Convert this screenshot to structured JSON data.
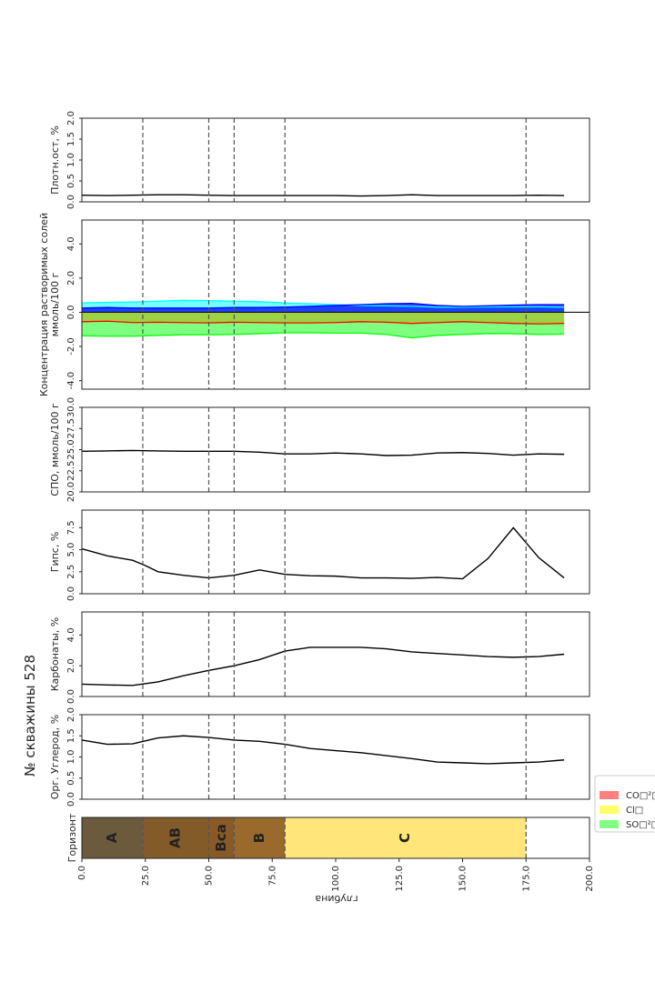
{
  "title": "№ скважины 528",
  "x_axis": {
    "label": "глубина",
    "range": [
      0,
      200
    ],
    "ticks": [
      0,
      25,
      50,
      75,
      100,
      125,
      150,
      175,
      200
    ],
    "tick_labels": [
      "0.0",
      "25.0",
      "50.0",
      "75.0",
      "100.0",
      "125.0",
      "150.0",
      "175.0",
      "200.0"
    ]
  },
  "horizon_boundaries": [
    24,
    50,
    60,
    80,
    175
  ],
  "legend": {
    "items": [
      {
        "label": "CO□²□",
        "color": "#ff8080"
      },
      {
        "label": "Cl□",
        "color": "#ffff66"
      },
      {
        "label": "SO□²□",
        "color": "#80ff80"
      }
    ]
  },
  "chart_data": [
    {
      "id": "dense_residue",
      "type": "line",
      "ylabel": "Плотн.ост, %",
      "ylim": [
        0,
        2
      ],
      "yticks": [
        "0.0",
        "0.5",
        "1.0",
        "1.5",
        "2.0"
      ],
      "ytick_values": [
        0,
        0.5,
        1,
        1.5,
        2
      ],
      "x": [
        0,
        10,
        20,
        30,
        40,
        50,
        60,
        70,
        80,
        90,
        100,
        110,
        120,
        130,
        140,
        150,
        160,
        170,
        180,
        190
      ],
      "values": [
        0.16,
        0.15,
        0.16,
        0.17,
        0.17,
        0.16,
        0.15,
        0.15,
        0.15,
        0.15,
        0.15,
        0.14,
        0.15,
        0.17,
        0.15,
        0.15,
        0.15,
        0.15,
        0.16,
        0.15
      ]
    },
    {
      "id": "salts",
      "type": "area",
      "ylabel_lines": [
        "Концентрация растворимых солей",
        "ммоль/100 г"
      ],
      "ylim": [
        -4.5,
        5.4
      ],
      "yticks": [
        "-4.0",
        "-2.0",
        "0.0",
        "2.0",
        "4.0"
      ],
      "ytick_values": [
        -4,
        -2,
        0,
        2,
        4
      ],
      "x": [
        0,
        10,
        20,
        30,
        40,
        50,
        60,
        70,
        80,
        90,
        100,
        110,
        120,
        130,
        140,
        150,
        160,
        170,
        180,
        190
      ],
      "series": [
        {
          "name": "cyan",
          "color": "#00ffff",
          "values": [
            0.55,
            0.58,
            0.6,
            0.65,
            0.7,
            0.68,
            0.65,
            0.62,
            0.55,
            0.5,
            0.45,
            0.4,
            0.38,
            0.35,
            0.3,
            0.3,
            0.32,
            0.32,
            0.32,
            0.3
          ]
        },
        {
          "name": "blue",
          "color": "#0000ff",
          "values": [
            0.25,
            0.28,
            0.25,
            0.25,
            0.25,
            0.25,
            0.28,
            0.28,
            0.3,
            0.35,
            0.4,
            0.45,
            0.5,
            0.52,
            0.4,
            0.35,
            0.38,
            0.42,
            0.45,
            0.45
          ]
        },
        {
          "name": "red",
          "color": "#ff0000",
          "values": [
            -0.55,
            -0.52,
            -0.6,
            -0.58,
            -0.6,
            -0.62,
            -0.58,
            -0.6,
            -0.62,
            -0.62,
            -0.6,
            -0.55,
            -0.58,
            -0.65,
            -0.6,
            -0.55,
            -0.6,
            -0.65,
            -0.68,
            -0.65
          ]
        },
        {
          "name": "green",
          "color": "#00ff00",
          "values": [
            -1.38,
            -1.4,
            -1.4,
            -1.35,
            -1.32,
            -1.32,
            -1.3,
            -1.25,
            -1.2,
            -1.2,
            -1.22,
            -1.22,
            -1.3,
            -1.5,
            -1.35,
            -1.3,
            -1.25,
            -1.25,
            -1.3,
            -1.28
          ]
        }
      ]
    },
    {
      "id": "spo",
      "type": "line",
      "ylabel": "СПО, ммоль/100 г",
      "ylim": [
        20,
        30
      ],
      "yticks": [
        "20.0",
        "22.5",
        "25.0",
        "27.5",
        "30.0"
      ],
      "ytick_values": [
        20,
        22.5,
        25,
        27.5,
        30
      ],
      "x": [
        0,
        10,
        20,
        30,
        40,
        50,
        60,
        70,
        80,
        90,
        100,
        110,
        120,
        130,
        140,
        150,
        160,
        170,
        180,
        190
      ],
      "values": [
        24.8,
        24.85,
        24.9,
        24.85,
        24.8,
        24.8,
        24.8,
        24.7,
        24.5,
        24.5,
        24.6,
        24.5,
        24.3,
        24.35,
        24.6,
        24.65,
        24.55,
        24.35,
        24.5,
        24.45
      ]
    },
    {
      "id": "gypsum",
      "type": "line",
      "ylabel": "Гипс, %",
      "ylim": [
        0,
        9.5
      ],
      "yticks": [
        "0.0",
        "2.5",
        "5.0",
        "7.5"
      ],
      "ytick_values": [
        0,
        2.5,
        5,
        7.5
      ],
      "x": [
        0,
        10,
        20,
        25,
        30,
        40,
        50,
        60,
        70,
        80,
        90,
        100,
        110,
        120,
        130,
        140,
        150,
        160,
        170,
        180,
        190
      ],
      "values": [
        5.1,
        4.3,
        3.8,
        3.2,
        2.5,
        2.1,
        1.8,
        2.1,
        2.7,
        2.2,
        2.05,
        2.0,
        1.8,
        1.8,
        1.75,
        1.85,
        1.7,
        4.0,
        7.5,
        4.1,
        1.8
      ]
    },
    {
      "id": "carbonates",
      "type": "line",
      "ylabel": "Карбонаты, %",
      "ylim": [
        0,
        5.5
      ],
      "yticks": [
        "0.0",
        "2.0",
        "4.0"
      ],
      "ytick_values": [
        0,
        2,
        4
      ],
      "x": [
        0,
        10,
        20,
        30,
        40,
        50,
        60,
        70,
        80,
        90,
        100,
        110,
        120,
        130,
        140,
        150,
        160,
        170,
        180,
        190
      ],
      "values": [
        0.8,
        0.75,
        0.72,
        0.95,
        1.35,
        1.7,
        2.0,
        2.4,
        2.95,
        3.2,
        3.2,
        3.2,
        3.1,
        2.9,
        2.8,
        2.7,
        2.6,
        2.55,
        2.6,
        2.75
      ]
    },
    {
      "id": "org_carbon",
      "type": "line",
      "ylabel": "Орг. Углерод, %",
      "ylim": [
        0,
        2
      ],
      "yticks": [
        "0.0",
        "0.5",
        "1.0",
        "1.5",
        "2.0"
      ],
      "ytick_values": [
        0,
        0.5,
        1,
        1.5,
        2
      ],
      "x": [
        0,
        10,
        20,
        30,
        40,
        50,
        60,
        70,
        80,
        90,
        100,
        110,
        120,
        130,
        140,
        150,
        160,
        170,
        180,
        190
      ],
      "values": [
        1.4,
        1.3,
        1.31,
        1.45,
        1.5,
        1.46,
        1.4,
        1.37,
        1.3,
        1.2,
        1.15,
        1.1,
        1.03,
        0.96,
        0.88,
        0.86,
        0.84,
        0.86,
        0.88,
        0.93
      ]
    },
    {
      "id": "horizons",
      "type": "bar",
      "ylabel": "Горизонт",
      "categories": [
        "A",
        "AB",
        "Bca",
        "B",
        "C"
      ],
      "ranges": [
        [
          0,
          24
        ],
        [
          24,
          50
        ],
        [
          50,
          60
        ],
        [
          60,
          80
        ],
        [
          80,
          175
        ]
      ],
      "colors": [
        "#6b5a3c",
        "#835b28",
        "#8a5a26",
        "#9a6a2c",
        "#ffe57a"
      ]
    }
  ]
}
